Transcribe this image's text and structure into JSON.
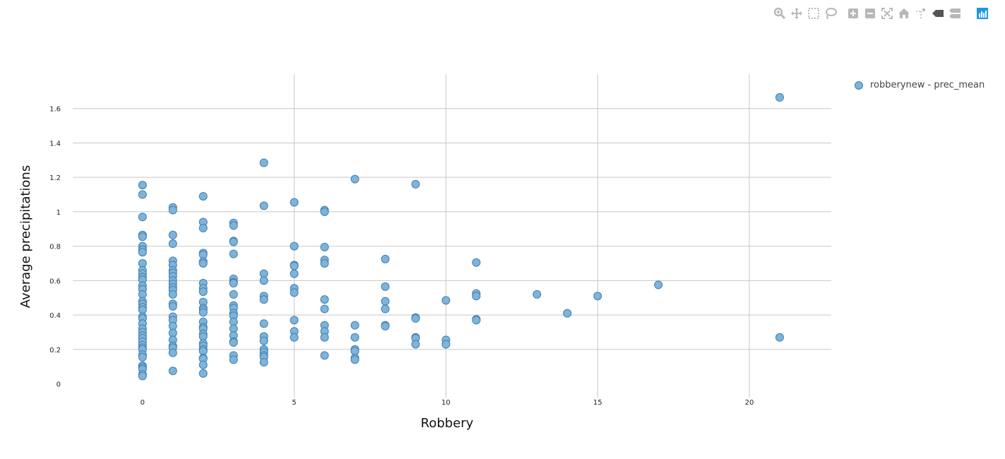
{
  "modebar": {
    "buttons": [
      {
        "icon": "zoom-icon"
      },
      {
        "icon": "pan-icon"
      },
      {
        "icon": "box-select-icon"
      },
      {
        "icon": "lasso-select-icon"
      },
      {
        "icon": "zoom-in-icon"
      },
      {
        "icon": "zoom-out-icon"
      },
      {
        "icon": "autoscale-icon"
      },
      {
        "icon": "reset-axes-icon"
      },
      {
        "icon": "toggle-spike-lines-icon"
      },
      {
        "icon": "hover-closest-icon"
      },
      {
        "icon": "hover-compare-icon"
      },
      {
        "icon": "plotly-logo-icon"
      }
    ]
  },
  "colors": {
    "marker_fill": "#7fb3d9",
    "marker_stroke": "#3f7fb0",
    "grid": "#c8c8c8",
    "axis_text": "#222222",
    "icon": "#b8b8b8",
    "logo": "#1f97e6"
  },
  "chart_data": {
    "type": "scatter",
    "title": "",
    "xlabel": "Robbery",
    "ylabel": "Average precipitations",
    "xlim": [
      -2.3,
      22.7
    ],
    "ylim": [
      -0.08,
      1.8
    ],
    "x_ticks": [
      0,
      5,
      10,
      15,
      20
    ],
    "y_ticks": [
      0,
      0.2,
      0.4,
      0.6,
      0.8,
      1,
      1.2,
      1.4,
      1.6
    ],
    "x_tick_labels": [
      "0",
      "5",
      "10",
      "15",
      "20"
    ],
    "y_tick_labels": [
      "0",
      "0.2",
      "0.4",
      "0.6",
      "0.8",
      "1",
      "1.2",
      "1.4",
      "1.6"
    ],
    "grid": true,
    "legend_position": "top-right",
    "series": [
      {
        "name": "robberynew - prec_mean",
        "points": [
          [
            0,
            1.155
          ],
          [
            0,
            1.1
          ],
          [
            0,
            0.97
          ],
          [
            0,
            0.865
          ],
          [
            0,
            0.855
          ],
          [
            0,
            0.8
          ],
          [
            0,
            0.78
          ],
          [
            0,
            0.765
          ],
          [
            0,
            0.7
          ],
          [
            0,
            0.66
          ],
          [
            0,
            0.64
          ],
          [
            0,
            0.62
          ],
          [
            0,
            0.605
          ],
          [
            0,
            0.57
          ],
          [
            0,
            0.55
          ],
          [
            0,
            0.52
          ],
          [
            0,
            0.48
          ],
          [
            0,
            0.465
          ],
          [
            0,
            0.445
          ],
          [
            0,
            0.43
          ],
          [
            0,
            0.39
          ],
          [
            0,
            0.38
          ],
          [
            0,
            0.35
          ],
          [
            0,
            0.32
          ],
          [
            0,
            0.3
          ],
          [
            0,
            0.28
          ],
          [
            0,
            0.265
          ],
          [
            0,
            0.245
          ],
          [
            0,
            0.225
          ],
          [
            0,
            0.21
          ],
          [
            0,
            0.2
          ],
          [
            0,
            0.17
          ],
          [
            0,
            0.155
          ],
          [
            0,
            0.105
          ],
          [
            0,
            0.095
          ],
          [
            0,
            0.085
          ],
          [
            0,
            0.055
          ],
          [
            0,
            0.045
          ],
          [
            1,
            1.025
          ],
          [
            1,
            1.01
          ],
          [
            1,
            0.865
          ],
          [
            1,
            0.815
          ],
          [
            1,
            0.715
          ],
          [
            1,
            0.69
          ],
          [
            1,
            0.66
          ],
          [
            1,
            0.645
          ],
          [
            1,
            0.625
          ],
          [
            1,
            0.6
          ],
          [
            1,
            0.58
          ],
          [
            1,
            0.56
          ],
          [
            1,
            0.545
          ],
          [
            1,
            0.52
          ],
          [
            1,
            0.465
          ],
          [
            1,
            0.45
          ],
          [
            1,
            0.39
          ],
          [
            1,
            0.37
          ],
          [
            1,
            0.335
          ],
          [
            1,
            0.295
          ],
          [
            1,
            0.255
          ],
          [
            1,
            0.22
          ],
          [
            1,
            0.21
          ],
          [
            1,
            0.18
          ],
          [
            1,
            0.075
          ],
          [
            2,
            1.09
          ],
          [
            2,
            0.94
          ],
          [
            2,
            0.905
          ],
          [
            2,
            0.76
          ],
          [
            2,
            0.75
          ],
          [
            2,
            0.71
          ],
          [
            2,
            0.7
          ],
          [
            2,
            0.585
          ],
          [
            2,
            0.555
          ],
          [
            2,
            0.535
          ],
          [
            2,
            0.475
          ],
          [
            2,
            0.44
          ],
          [
            2,
            0.43
          ],
          [
            2,
            0.415
          ],
          [
            2,
            0.36
          ],
          [
            2,
            0.33
          ],
          [
            2,
            0.32
          ],
          [
            2,
            0.29
          ],
          [
            2,
            0.275
          ],
          [
            2,
            0.235
          ],
          [
            2,
            0.22
          ],
          [
            2,
            0.2
          ],
          [
            2,
            0.19
          ],
          [
            2,
            0.15
          ],
          [
            2,
            0.145
          ],
          [
            2,
            0.11
          ],
          [
            2,
            0.06
          ],
          [
            3,
            0.935
          ],
          [
            3,
            0.92
          ],
          [
            3,
            0.83
          ],
          [
            3,
            0.825
          ],
          [
            3,
            0.755
          ],
          [
            3,
            0.61
          ],
          [
            3,
            0.59
          ],
          [
            3,
            0.585
          ],
          [
            3,
            0.52
          ],
          [
            3,
            0.455
          ],
          [
            3,
            0.44
          ],
          [
            3,
            0.41
          ],
          [
            3,
            0.395
          ],
          [
            3,
            0.36
          ],
          [
            3,
            0.32
          ],
          [
            3,
            0.28
          ],
          [
            3,
            0.245
          ],
          [
            3,
            0.24
          ],
          [
            3,
            0.165
          ],
          [
            3,
            0.14
          ],
          [
            4,
            1.285
          ],
          [
            4,
            1.035
          ],
          [
            4,
            0.64
          ],
          [
            4,
            0.6
          ],
          [
            4,
            0.51
          ],
          [
            4,
            0.49
          ],
          [
            4,
            0.35
          ],
          [
            4,
            0.275
          ],
          [
            4,
            0.25
          ],
          [
            4,
            0.2
          ],
          [
            4,
            0.185
          ],
          [
            4,
            0.165
          ],
          [
            4,
            0.155
          ],
          [
            4,
            0.125
          ],
          [
            5,
            1.055
          ],
          [
            5,
            0.8
          ],
          [
            5,
            0.69
          ],
          [
            5,
            0.685
          ],
          [
            5,
            0.64
          ],
          [
            5,
            0.555
          ],
          [
            5,
            0.53
          ],
          [
            5,
            0.37
          ],
          [
            5,
            0.305
          ],
          [
            5,
            0.27
          ],
          [
            6,
            1.01
          ],
          [
            6,
            1.0
          ],
          [
            6,
            0.795
          ],
          [
            6,
            0.72
          ],
          [
            6,
            0.7
          ],
          [
            6,
            0.49
          ],
          [
            6,
            0.435
          ],
          [
            6,
            0.34
          ],
          [
            6,
            0.305
          ],
          [
            6,
            0.27
          ],
          [
            6,
            0.165
          ],
          [
            7,
            1.19
          ],
          [
            7,
            0.34
          ],
          [
            7,
            0.27
          ],
          [
            7,
            0.2
          ],
          [
            7,
            0.19
          ],
          [
            7,
            0.15
          ],
          [
            7,
            0.14
          ],
          [
            8,
            0.725
          ],
          [
            8,
            0.565
          ],
          [
            8,
            0.48
          ],
          [
            8,
            0.435
          ],
          [
            8,
            0.34
          ],
          [
            8,
            0.335
          ],
          [
            9,
            1.16
          ],
          [
            9,
            0.385
          ],
          [
            9,
            0.38
          ],
          [
            9,
            0.27
          ],
          [
            9,
            0.265
          ],
          [
            9,
            0.23
          ],
          [
            10,
            0.485
          ],
          [
            10,
            0.255
          ],
          [
            10,
            0.23
          ],
          [
            11,
            0.705
          ],
          [
            11,
            0.525
          ],
          [
            11,
            0.51
          ],
          [
            11,
            0.375
          ],
          [
            11,
            0.37
          ],
          [
            13,
            0.52
          ],
          [
            14,
            0.41
          ],
          [
            15,
            0.51
          ],
          [
            17,
            0.575
          ],
          [
            21,
            1.665
          ],
          [
            21,
            0.27
          ]
        ]
      }
    ]
  }
}
